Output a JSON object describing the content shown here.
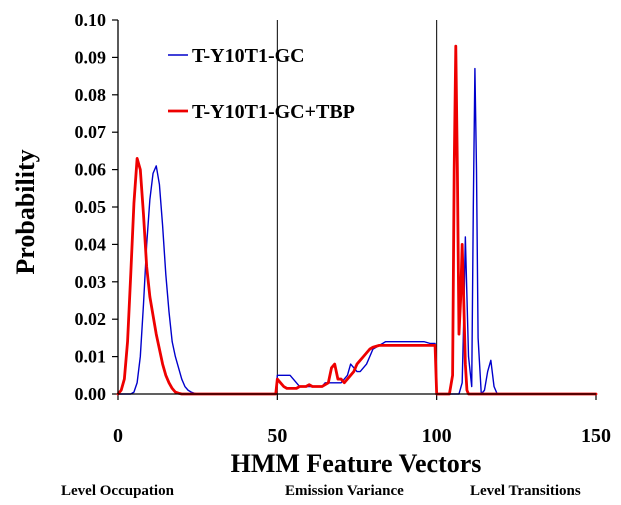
{
  "chart_data": {
    "type": "line",
    "title": "",
    "xlabel": "HMM Feature Vectors",
    "ylabel": "Probability",
    "xlim": [
      0,
      150
    ],
    "ylim": [
      0,
      0.1
    ],
    "x_ticks": [
      0,
      50,
      100,
      150
    ],
    "x_tick_labels": [
      "0",
      "50",
      "100",
      "150"
    ],
    "y_ticks": [
      0,
      0.01,
      0.02,
      0.03,
      0.04,
      0.05,
      0.06,
      0.07,
      0.08,
      0.09,
      0.1
    ],
    "y_tick_labels": [
      "0.00",
      "0.01",
      "0.02",
      "0.03",
      "0.04",
      "0.05",
      "0.06",
      "0.07",
      "0.08",
      "0.09",
      "0.10"
    ],
    "grid": false,
    "legend_position": "top-left",
    "vertical_dividers": [
      50,
      100
    ],
    "section_labels": [
      "Level Occupation",
      "Emission Variance",
      "Level Transitions"
    ],
    "series": [
      {
        "name": "T-Y10T1-GC",
        "color": "#0000cc",
        "x": [
          0,
          4,
          5,
          6,
          7,
          8,
          9,
          10,
          11,
          12,
          13,
          14,
          15,
          16,
          17,
          18,
          19,
          20,
          21,
          22,
          23,
          24,
          25,
          49.5,
          50,
          51,
          52,
          53,
          54,
          55,
          56,
          57,
          58,
          59,
          60,
          61,
          62,
          63,
          64,
          65,
          66,
          67,
          68,
          69,
          70,
          71,
          72,
          73,
          74,
          75,
          76,
          77,
          78,
          79,
          80,
          82,
          84,
          86,
          88,
          90,
          92,
          94,
          96,
          98,
          99.5,
          100,
          107,
          108,
          108.5,
          109,
          110,
          111,
          111.5,
          112,
          112.5,
          113,
          114,
          115,
          116,
          117,
          118,
          119,
          150
        ],
        "y": [
          0,
          0,
          0.0005,
          0.003,
          0.01,
          0.024,
          0.04,
          0.052,
          0.059,
          0.061,
          0.056,
          0.045,
          0.032,
          0.022,
          0.014,
          0.01,
          0.007,
          0.004,
          0.002,
          0.001,
          0.0005,
          0.0002,
          0,
          0,
          0.005,
          0.005,
          0.005,
          0.005,
          0.005,
          0.004,
          0.003,
          0.002,
          0.002,
          0.002,
          0.002,
          0.002,
          0.002,
          0.002,
          0.002,
          0.003,
          0.003,
          0.003,
          0.003,
          0.003,
          0.003,
          0.004,
          0.005,
          0.008,
          0.007,
          0.006,
          0.006,
          0.007,
          0.008,
          0.01,
          0.012,
          0.013,
          0.014,
          0.014,
          0.014,
          0.014,
          0.014,
          0.014,
          0.014,
          0.0135,
          0.0135,
          0,
          0,
          0.003,
          0.02,
          0.042,
          0.01,
          0.002,
          0.05,
          0.087,
          0.06,
          0.015,
          0,
          0.001,
          0.006,
          0.009,
          0.002,
          0,
          0
        ]
      },
      {
        "name": "T-Y10T1-GC+TBP",
        "color": "#ee0000",
        "x": [
          0,
          1,
          2,
          3,
          4,
          5,
          6,
          7,
          8,
          9,
          10,
          11,
          12,
          13,
          14,
          15,
          16,
          17,
          18,
          19,
          20,
          21,
          22,
          23,
          49.5,
          50,
          51,
          52,
          53,
          54,
          55,
          56,
          57,
          58,
          59,
          60,
          61,
          62,
          63,
          64,
          65,
          66,
          67,
          68,
          69,
          70,
          71,
          72,
          73,
          74,
          75,
          76,
          77,
          78,
          79,
          80,
          82,
          84,
          86,
          88,
          90,
          92,
          94,
          96,
          98,
          99.5,
          100,
          104,
          105,
          105.5,
          106,
          106.5,
          107,
          107.5,
          108,
          108.5,
          109,
          109.5,
          110,
          150
        ],
        "y": [
          0,
          0.001,
          0.004,
          0.014,
          0.032,
          0.051,
          0.063,
          0.06,
          0.048,
          0.034,
          0.026,
          0.021,
          0.016,
          0.012,
          0.008,
          0.005,
          0.003,
          0.0015,
          0.0005,
          0.0002,
          0,
          0,
          0,
          0,
          0,
          0.004,
          0.003,
          0.002,
          0.0015,
          0.0015,
          0.0015,
          0.0015,
          0.002,
          0.002,
          0.002,
          0.0025,
          0.002,
          0.002,
          0.002,
          0.002,
          0.0025,
          0.003,
          0.007,
          0.008,
          0.004,
          0.004,
          0.003,
          0.004,
          0.005,
          0.006,
          0.008,
          0.009,
          0.01,
          0.011,
          0.012,
          0.0125,
          0.013,
          0.013,
          0.013,
          0.013,
          0.013,
          0.013,
          0.013,
          0.013,
          0.013,
          0.013,
          0,
          0,
          0.005,
          0.06,
          0.093,
          0.06,
          0.016,
          0.025,
          0.04,
          0.025,
          0.008,
          0.001,
          0,
          0
        ]
      }
    ]
  }
}
